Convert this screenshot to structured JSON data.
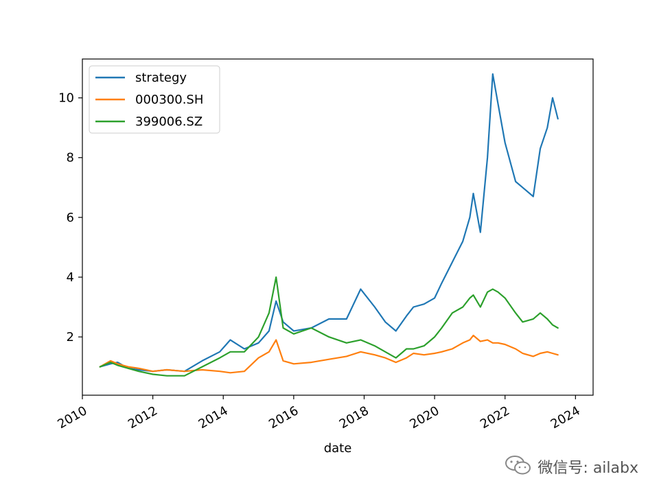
{
  "chart_data": {
    "type": "line",
    "xlabel": "date",
    "ylabel": "",
    "x_ticks": [
      "2010",
      "2012",
      "2014",
      "2016",
      "2018",
      "2020",
      "2022",
      "2024"
    ],
    "y_ticks": [
      "2",
      "4",
      "6",
      "8",
      "10"
    ],
    "xlim": [
      2010.0,
      2024.5
    ],
    "ylim": [
      0.05,
      11.3
    ],
    "legend": "upper-left",
    "x": [
      2010.5,
      2010.8,
      2011.0,
      2011.3,
      2011.6,
      2012.0,
      2012.4,
      2012.9,
      2013.4,
      2013.9,
      2014.2,
      2014.6,
      2015.0,
      2015.3,
      2015.5,
      2015.7,
      2016.0,
      2016.5,
      2017.0,
      2017.5,
      2017.9,
      2018.3,
      2018.6,
      2018.9,
      2019.2,
      2019.4,
      2019.7,
      2020.0,
      2020.2,
      2020.5,
      2020.8,
      2021.0,
      2021.1,
      2021.3,
      2021.5,
      2021.65,
      2021.8,
      2022.0,
      2022.3,
      2022.5,
      2022.8,
      2023.0,
      2023.2,
      2023.35,
      2023.5
    ],
    "series": [
      {
        "name": "strategy",
        "color": "#1f77b4",
        "values": [
          1.0,
          1.1,
          1.15,
          0.95,
          0.9,
          0.85,
          0.9,
          0.85,
          1.2,
          1.5,
          1.9,
          1.6,
          1.8,
          2.2,
          3.2,
          2.5,
          2.2,
          2.3,
          2.6,
          2.6,
          3.6,
          3.0,
          2.5,
          2.2,
          2.7,
          3.0,
          3.1,
          3.3,
          3.8,
          4.5,
          5.2,
          6.0,
          6.8,
          5.5,
          8.0,
          10.8,
          9.8,
          8.5,
          7.2,
          7.0,
          6.7,
          8.3,
          9.0,
          10.0,
          9.3
        ]
      },
      {
        "name": "000300.SH",
        "color": "#ff7f0e",
        "values": [
          1.0,
          1.2,
          1.1,
          1.0,
          0.95,
          0.85,
          0.9,
          0.85,
          0.9,
          0.85,
          0.8,
          0.85,
          1.3,
          1.5,
          1.9,
          1.2,
          1.1,
          1.15,
          1.25,
          1.35,
          1.5,
          1.4,
          1.3,
          1.15,
          1.3,
          1.45,
          1.4,
          1.45,
          1.5,
          1.6,
          1.8,
          1.9,
          2.05,
          1.85,
          1.9,
          1.8,
          1.8,
          1.75,
          1.6,
          1.45,
          1.35,
          1.45,
          1.5,
          1.45,
          1.4
        ]
      },
      {
        "name": "399006.SZ",
        "color": "#2ca02c",
        "values": [
          1.0,
          1.15,
          1.05,
          0.95,
          0.85,
          0.75,
          0.7,
          0.7,
          1.0,
          1.3,
          1.5,
          1.5,
          2.0,
          2.8,
          4.0,
          2.3,
          2.1,
          2.3,
          2.0,
          1.8,
          1.9,
          1.7,
          1.5,
          1.3,
          1.6,
          1.6,
          1.7,
          2.0,
          2.3,
          2.8,
          3.0,
          3.3,
          3.4,
          3.0,
          3.5,
          3.6,
          3.5,
          3.3,
          2.8,
          2.5,
          2.6,
          2.8,
          2.6,
          2.4,
          2.3
        ]
      }
    ]
  },
  "watermark": {
    "icon": "wechat-icon",
    "text": "微信号: ailabx"
  }
}
